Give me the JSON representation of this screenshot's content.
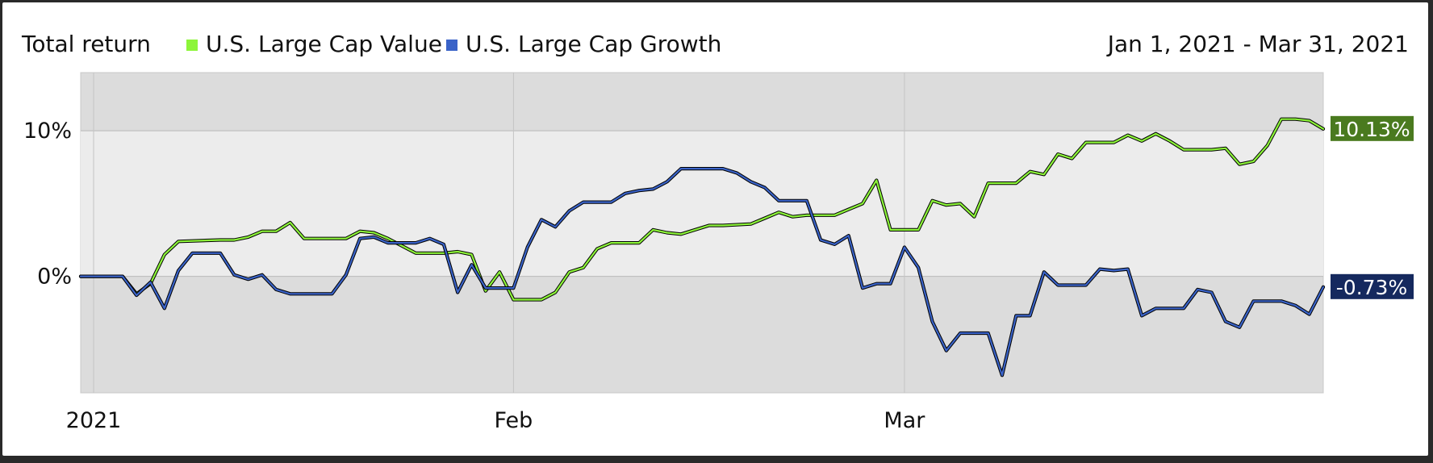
{
  "header": {
    "title": "Total return",
    "date_range": "Jan 1, 2021 - Mar 31, 2021"
  },
  "chart_data": {
    "type": "line",
    "title": "Total return",
    "subtitle": "Jan 1, 2021 - Mar 31, 2021",
    "xlabel": "",
    "ylabel": "",
    "x_range": [
      "2021-01-01",
      "2021-03-31"
    ],
    "ylim": [
      -8,
      14
    ],
    "grid": true,
    "legend_position": "top-left",
    "x_ticks": [
      {
        "date": "2021-01-01",
        "label": "2021"
      },
      {
        "date": "2021-02-01",
        "label": "Feb"
      },
      {
        "date": "2021-03-01",
        "label": "Mar"
      }
    ],
    "y_ticks": [
      {
        "value": 0,
        "label": "0%"
      },
      {
        "value": 10,
        "label": "10%"
      }
    ],
    "series": [
      {
        "name": "U.S. Large Cap Value",
        "color": "#8df53a",
        "end_label": "10.13%",
        "end_label_color": "#4a7a1f",
        "points": [
          [
            "2021-01-01",
            0.0
          ],
          [
            "2021-01-04",
            0.0
          ],
          [
            "2021-01-05",
            -1.2
          ],
          [
            "2021-01-06",
            -0.5
          ],
          [
            "2021-01-07",
            1.5
          ],
          [
            "2021-01-08",
            2.4
          ],
          [
            "2021-01-11",
            2.5
          ],
          [
            "2021-01-12",
            2.5
          ],
          [
            "2021-01-13",
            2.7
          ],
          [
            "2021-01-14",
            3.1
          ],
          [
            "2021-01-15",
            3.1
          ],
          [
            "2021-01-16",
            3.7
          ],
          [
            "2021-01-17",
            2.6
          ],
          [
            "2021-01-19",
            2.6
          ],
          [
            "2021-01-20",
            2.6
          ],
          [
            "2021-01-21",
            3.1
          ],
          [
            "2021-01-22",
            3.0
          ],
          [
            "2021-01-23",
            2.6
          ],
          [
            "2021-01-25",
            1.6
          ],
          [
            "2021-01-26",
            1.6
          ],
          [
            "2021-01-27",
            1.6
          ],
          [
            "2021-01-28",
            1.7
          ],
          [
            "2021-01-29",
            1.5
          ],
          [
            "2021-01-30",
            -1.0
          ],
          [
            "2021-01-31",
            0.3
          ],
          [
            "2021-02-01",
            -1.6
          ],
          [
            "2021-02-02",
            -1.6
          ],
          [
            "2021-02-03",
            -1.6
          ],
          [
            "2021-02-04",
            -1.1
          ],
          [
            "2021-02-05",
            0.3
          ],
          [
            "2021-02-06",
            0.6
          ],
          [
            "2021-02-07",
            1.9
          ],
          [
            "2021-02-08",
            2.3
          ],
          [
            "2021-02-10",
            2.3
          ],
          [
            "2021-02-11",
            3.2
          ],
          [
            "2021-02-12",
            3.0
          ],
          [
            "2021-02-13",
            2.9
          ],
          [
            "2021-02-15",
            3.5
          ],
          [
            "2021-02-16",
            3.5
          ],
          [
            "2021-02-18",
            3.6
          ],
          [
            "2021-02-19",
            4.0
          ],
          [
            "2021-02-20",
            4.4
          ],
          [
            "2021-02-21",
            4.1
          ],
          [
            "2021-02-22",
            4.2
          ],
          [
            "2021-02-24",
            4.2
          ],
          [
            "2021-02-25",
            4.6
          ],
          [
            "2021-02-26",
            5.0
          ],
          [
            "2021-02-27",
            6.6
          ],
          [
            "2021-02-28",
            3.2
          ],
          [
            "2021-03-01",
            3.2
          ],
          [
            "2021-03-02",
            3.2
          ],
          [
            "2021-03-03",
            5.2
          ],
          [
            "2021-03-04",
            4.9
          ],
          [
            "2021-03-05",
            5.0
          ],
          [
            "2021-03-06",
            4.1
          ],
          [
            "2021-03-07",
            6.4
          ],
          [
            "2021-03-08",
            6.4
          ],
          [
            "2021-03-09",
            6.4
          ],
          [
            "2021-03-10",
            7.2
          ],
          [
            "2021-03-11",
            7.0
          ],
          [
            "2021-03-12",
            8.4
          ],
          [
            "2021-03-13",
            8.1
          ],
          [
            "2021-03-14",
            9.2
          ],
          [
            "2021-03-16",
            9.2
          ],
          [
            "2021-03-17",
            9.7
          ],
          [
            "2021-03-18",
            9.3
          ],
          [
            "2021-03-19",
            9.8
          ],
          [
            "2021-03-20",
            9.3
          ],
          [
            "2021-03-21",
            8.7
          ],
          [
            "2021-03-23",
            8.7
          ],
          [
            "2021-03-24",
            8.8
          ],
          [
            "2021-03-25",
            7.7
          ],
          [
            "2021-03-26",
            7.9
          ],
          [
            "2021-03-27",
            9.0
          ],
          [
            "2021-03-28",
            10.8
          ],
          [
            "2021-03-29",
            10.8
          ],
          [
            "2021-03-30",
            10.7
          ],
          [
            "2021-03-31",
            10.13
          ]
        ]
      },
      {
        "name": "U.S. Large Cap Growth",
        "color": "#3a63c8",
        "end_label": "-0.73%",
        "end_label_color": "#15295e",
        "points": [
          [
            "2021-01-01",
            0.0
          ],
          [
            "2021-01-04",
            0.0
          ],
          [
            "2021-01-05",
            -1.3
          ],
          [
            "2021-01-06",
            -0.4
          ],
          [
            "2021-01-07",
            -2.2
          ],
          [
            "2021-01-08",
            0.4
          ],
          [
            "2021-01-09",
            1.6
          ],
          [
            "2021-01-11",
            1.6
          ],
          [
            "2021-01-12",
            0.1
          ],
          [
            "2021-01-13",
            -0.2
          ],
          [
            "2021-01-14",
            0.1
          ],
          [
            "2021-01-15",
            -0.9
          ],
          [
            "2021-01-16",
            -1.2
          ],
          [
            "2021-01-18",
            -1.2
          ],
          [
            "2021-01-19",
            -1.2
          ],
          [
            "2021-01-20",
            0.1
          ],
          [
            "2021-01-21",
            2.6
          ],
          [
            "2021-01-22",
            2.7
          ],
          [
            "2021-01-23",
            2.3
          ],
          [
            "2021-01-25",
            2.3
          ],
          [
            "2021-01-26",
            2.6
          ],
          [
            "2021-01-27",
            2.2
          ],
          [
            "2021-01-28",
            -1.1
          ],
          [
            "2021-01-29",
            0.8
          ],
          [
            "2021-01-30",
            -0.8
          ],
          [
            "2021-01-31",
            -0.8
          ],
          [
            "2021-02-01",
            -0.8
          ],
          [
            "2021-02-02",
            2.0
          ],
          [
            "2021-02-03",
            3.9
          ],
          [
            "2021-02-04",
            3.4
          ],
          [
            "2021-02-05",
            4.5
          ],
          [
            "2021-02-06",
            5.1
          ],
          [
            "2021-02-08",
            5.1
          ],
          [
            "2021-02-09",
            5.7
          ],
          [
            "2021-02-10",
            5.9
          ],
          [
            "2021-02-11",
            6.0
          ],
          [
            "2021-02-12",
            6.5
          ],
          [
            "2021-02-13",
            7.4
          ],
          [
            "2021-02-15",
            7.4
          ],
          [
            "2021-02-16",
            7.4
          ],
          [
            "2021-02-17",
            7.1
          ],
          [
            "2021-02-18",
            6.5
          ],
          [
            "2021-02-19",
            6.1
          ],
          [
            "2021-02-20",
            5.2
          ],
          [
            "2021-02-22",
            5.2
          ],
          [
            "2021-02-23",
            2.5
          ],
          [
            "2021-02-24",
            2.2
          ],
          [
            "2021-02-25",
            2.8
          ],
          [
            "2021-02-26",
            -0.8
          ],
          [
            "2021-02-27",
            -0.5
          ],
          [
            "2021-02-28",
            -0.5
          ],
          [
            "2021-03-01",
            2.0
          ],
          [
            "2021-03-02",
            0.6
          ],
          [
            "2021-03-03",
            -3.1
          ],
          [
            "2021-03-04",
            -5.1
          ],
          [
            "2021-03-05",
            -3.9
          ],
          [
            "2021-03-07",
            -3.9
          ],
          [
            "2021-03-08",
            -6.8
          ],
          [
            "2021-03-09",
            -2.7
          ],
          [
            "2021-03-10",
            -2.7
          ],
          [
            "2021-03-11",
            0.3
          ],
          [
            "2021-03-12",
            -0.6
          ],
          [
            "2021-03-14",
            -0.6
          ],
          [
            "2021-03-15",
            0.5
          ],
          [
            "2021-03-16",
            0.4
          ],
          [
            "2021-03-17",
            0.5
          ],
          [
            "2021-03-18",
            -2.7
          ],
          [
            "2021-03-19",
            -2.2
          ],
          [
            "2021-03-21",
            -2.2
          ],
          [
            "2021-03-22",
            -0.9
          ],
          [
            "2021-03-23",
            -1.1
          ],
          [
            "2021-03-24",
            -3.1
          ],
          [
            "2021-03-25",
            -3.5
          ],
          [
            "2021-03-26",
            -1.7
          ],
          [
            "2021-03-28",
            -1.7
          ],
          [
            "2021-03-29",
            -2.0
          ],
          [
            "2021-03-30",
            -2.6
          ],
          [
            "2021-03-31",
            -0.73
          ]
        ]
      }
    ]
  }
}
